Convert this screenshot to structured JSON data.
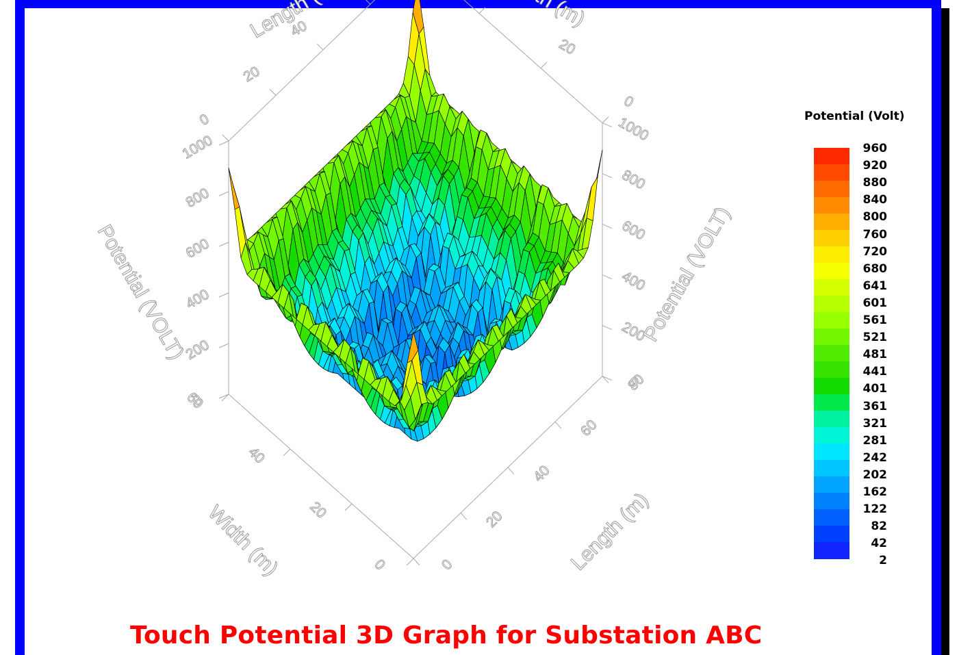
{
  "chart_data": {
    "type": "surface-3d",
    "title": "Touch Potential 3D Graph for Substation ABC",
    "z_axis": {
      "label": "Potential (VOLT)",
      "ticks": [
        "0",
        "200",
        "400",
        "600",
        "800",
        "1000"
      ],
      "range": [
        0,
        1000
      ]
    },
    "length_axis": {
      "label": "Length (m)",
      "ticks": [
        "0",
        "20",
        "40",
        "60",
        "80"
      ],
      "range": [
        0,
        80
      ]
    },
    "width_axis": {
      "label": "Width (m)",
      "ticks": [
        "0",
        "20",
        "40",
        "60"
      ],
      "range": [
        0,
        60
      ]
    },
    "surface": {
      "corner_peak": 960,
      "edge_values": 600,
      "center_minimum": 150,
      "grid_minima": 100
    },
    "legend": {
      "title": "Potential (Volt)",
      "values": [
        "960",
        "920",
        "880",
        "840",
        "800",
        "760",
        "720",
        "680",
        "641",
        "601",
        "561",
        "521",
        "481",
        "441",
        "401",
        "361",
        "321",
        "281",
        "242",
        "202",
        "162",
        "122",
        "82",
        "42",
        "2"
      ],
      "colors": [
        "#ff2a00",
        "#ff4a00",
        "#ff6a00",
        "#ff8c00",
        "#ffae00",
        "#ffd000",
        "#ffee00",
        "#f4ff00",
        "#d6ff00",
        "#b6ff00",
        "#96ff00",
        "#74f800",
        "#52ec00",
        "#36e400",
        "#14dc00",
        "#00e84a",
        "#00f2a0",
        "#00f4d6",
        "#00e6ff",
        "#00c6ff",
        "#00a4ff",
        "#0082ff",
        "#0060ff",
        "#0040ff",
        "#1024ff"
      ],
      "position": "right"
    }
  }
}
